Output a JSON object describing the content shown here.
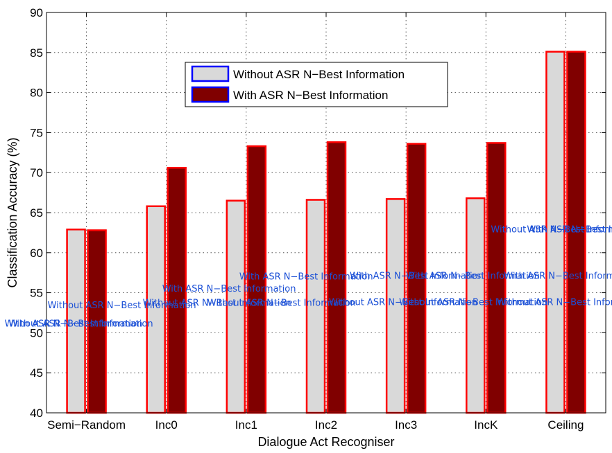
{
  "chart_data": {
    "type": "bar",
    "xlabel": "Dialogue Act Recogniser",
    "ylabel": "Classification Accuracy (%)",
    "ylim": [
      40,
      90
    ],
    "yticks": [
      40,
      45,
      50,
      55,
      60,
      65,
      70,
      75,
      80,
      85,
      90
    ],
    "grid": true,
    "legend_position": "top-center",
    "categories": [
      "Semi−Random",
      "Inc0",
      "Inc1",
      "Inc2",
      "Inc3",
      "IncK",
      "Ceiling"
    ],
    "series": [
      {
        "name": "Without ASR N−Best Information",
        "values": [
          62.9,
          65.8,
          66.5,
          66.6,
          66.7,
          66.8,
          85.1
        ],
        "color": "#d9d9d9"
      },
      {
        "name": "With ASR N−Best Information",
        "values": [
          62.8,
          70.6,
          73.3,
          73.8,
          73.6,
          73.7,
          85.1
        ],
        "color": "#800000"
      }
    ],
    "bar_edge_color": "#ff0000",
    "legend_edge_color": "#0000ff",
    "annotations": [
      {
        "text": "With ASR N−Best Information",
        "x": "Semi−Random",
        "y": 51.1
      },
      {
        "text": "Without ASR N−Best Information",
        "x": "Semi−Random",
        "y": 51.1
      },
      {
        "text": "Without ASR N−Best Information",
        "x": "Semi−Random",
        "y": 53.4
      },
      {
        "text": "With ASR N−Best Information",
        "x": "Inc0",
        "y": 55.5
      },
      {
        "text": "Without ASR N−Best Information",
        "x": "Inc0",
        "y": 53.7
      },
      {
        "text": "With ASR N−Best Information",
        "x": "Inc1",
        "y": 57.0
      },
      {
        "text": "Without ASR N−Best Information",
        "x": "Inc1",
        "y": 53.7
      },
      {
        "text": "With ASR N−Best Information",
        "x": "Inc2",
        "y": 57.1
      },
      {
        "text": "Without ASR N−Best Information",
        "x": "Inc2",
        "y": 53.8
      },
      {
        "text": "With ASR N−Best Information",
        "x": "Inc3",
        "y": 57.1
      },
      {
        "text": "Without ASR N−Best Information",
        "x": "Inc3",
        "y": 53.8
      },
      {
        "text": "With ASR N−Best Information",
        "x": "IncK",
        "y": 57.1
      },
      {
        "text": "Without ASR N−Best Information",
        "x": "IncK",
        "y": 53.8
      },
      {
        "text": "Without ASR N−Best Information",
        "x": "Ceiling",
        "y": 62.9
      },
      {
        "text": "With ASR N−Best Information",
        "x": "Ceiling",
        "y": 62.9
      }
    ]
  }
}
